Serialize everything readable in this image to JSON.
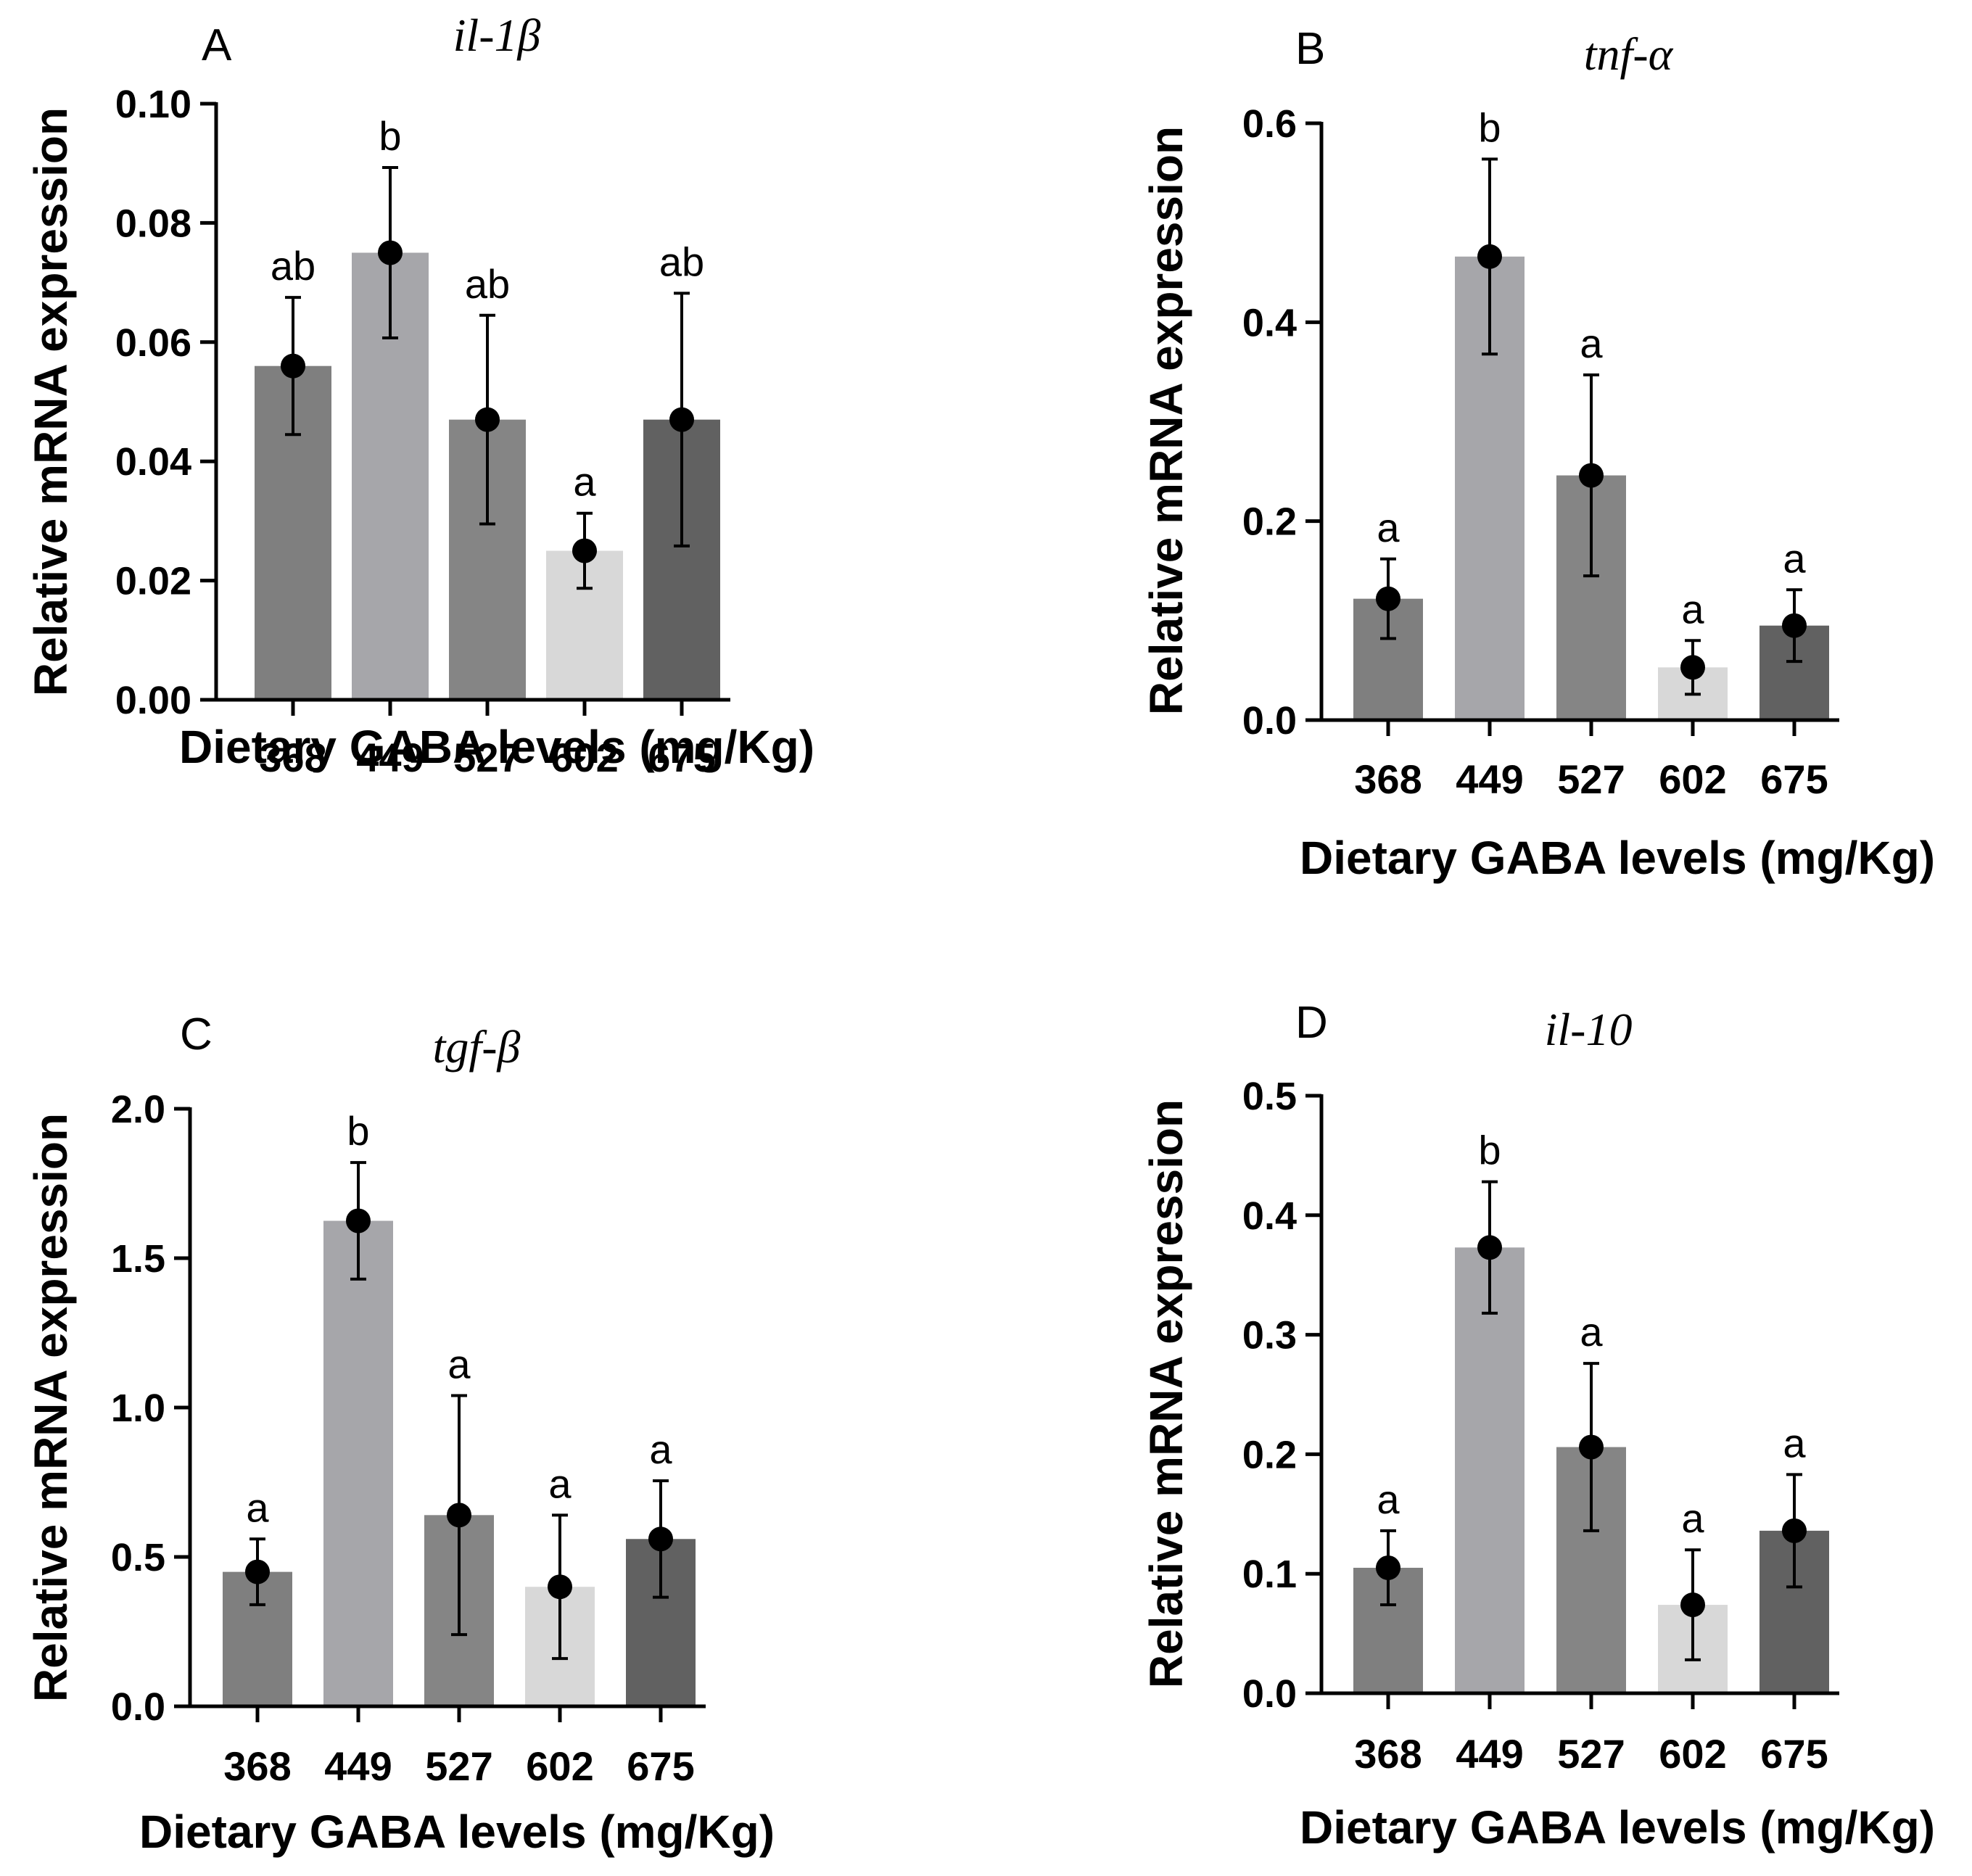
{
  "chart_data": [
    {
      "type": "bar",
      "panel": "A",
      "title": "il-1β",
      "xlabel": "Dietary GABA levels (mg/Kg)",
      "ylabel": "Relative mRNA expression",
      "ylim": [
        0,
        0.1
      ],
      "yticks": [
        "0.00",
        "0.02",
        "0.04",
        "0.06",
        "0.08",
        "0.10"
      ],
      "categories": [
        "368",
        "449",
        "527",
        "602",
        "675"
      ],
      "values": [
        0.056,
        0.075,
        0.047,
        0.025,
        0.047
      ],
      "errors": [
        0.0115,
        0.0143,
        0.0175,
        0.0063,
        0.0212
      ],
      "significance": [
        "ab",
        "b",
        "ab",
        "a",
        "ab"
      ],
      "colors": [
        "#7f7f7f",
        "#a6a6aa",
        "#858585",
        "#d8d8d8",
        "#616161"
      ]
    },
    {
      "type": "bar",
      "panel": "B",
      "title": "tnf-α",
      "xlabel": "Dietary GABA levels (mg/Kg)",
      "ylabel": "Relative mRNA expression",
      "ylim": [
        0,
        0.6
      ],
      "yticks": [
        "0.0",
        "0.2",
        "0.4",
        "0.6"
      ],
      "categories": [
        "368",
        "449",
        "527",
        "602",
        "675"
      ],
      "values": [
        0.122,
        0.466,
        0.246,
        0.053,
        0.095
      ],
      "errors": [
        0.04,
        0.098,
        0.101,
        0.027,
        0.036
      ],
      "significance": [
        "a",
        "b",
        "a",
        "a",
        "a"
      ],
      "colors": [
        "#7f7f7f",
        "#a6a6aa",
        "#858585",
        "#d8d8d8",
        "#616161"
      ]
    },
    {
      "type": "bar",
      "panel": "C",
      "title": "tgf-β",
      "xlabel": "Dietary GABA levels (mg/Kg)",
      "ylabel": "Relative mRNA expression",
      "ylim": [
        0,
        2.0
      ],
      "yticks": [
        "0.0",
        "0.5",
        "1.0",
        "1.5",
        "2.0"
      ],
      "categories": [
        "368",
        "449",
        "527",
        "602",
        "675"
      ],
      "values": [
        0.45,
        1.625,
        0.64,
        0.4,
        0.56
      ],
      "errors": [
        0.11,
        0.195,
        0.4,
        0.24,
        0.195
      ],
      "significance": [
        "a",
        "b",
        "a",
        "a",
        "a"
      ],
      "colors": [
        "#7f7f7f",
        "#a6a6aa",
        "#858585",
        "#d8d8d8",
        "#616161"
      ]
    },
    {
      "type": "bar",
      "panel": "D",
      "title": "il-10",
      "xlabel": "Dietary GABA levels (mg/Kg)",
      "ylabel": "Relative mRNA expression",
      "ylim": [
        0,
        0.5
      ],
      "yticks": [
        "0.0",
        "0.1",
        "0.2",
        "0.3",
        "0.4",
        "0.5"
      ],
      "categories": [
        "368",
        "449",
        "527",
        "602",
        "675"
      ],
      "values": [
        0.105,
        0.373,
        0.206,
        0.074,
        0.136
      ],
      "errors": [
        0.031,
        0.055,
        0.07,
        0.046,
        0.047
      ],
      "significance": [
        "a",
        "b",
        "a",
        "a",
        "a"
      ],
      "colors": [
        "#7f7f7f",
        "#a6a6aa",
        "#858585",
        "#d8d8d8",
        "#616161"
      ]
    }
  ]
}
